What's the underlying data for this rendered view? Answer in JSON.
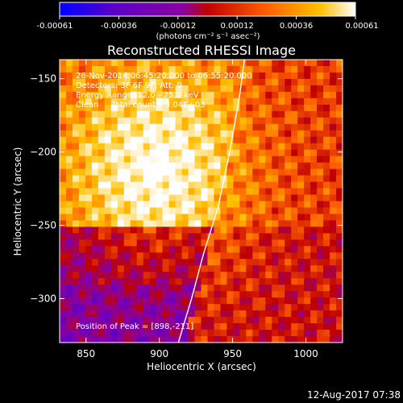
{
  "colorbar": {
    "ticks": [
      "-0.00061",
      "-0.00036",
      "-0.00012",
      "0.00012",
      "0.00036",
      "0.00061"
    ],
    "units_label": "(photons cm⁻² s⁻¹ asec⁻²)",
    "range": [
      -0.00061,
      0.00061
    ],
    "colors": [
      "#0000ff",
      "#5a00c8",
      "#8a00a0",
      "#c00000",
      "#ff6000",
      "#ffc000",
      "#ffffff"
    ]
  },
  "chart_data": {
    "type": "heatmap",
    "title": "Reconstructed RHESSI Image",
    "xlabel": "Heliocentric X (arcsec)",
    "ylabel": "Heliocentric Y (arcsec)",
    "xlim": [
      832,
      1025
    ],
    "ylim": [
      -330,
      -137
    ],
    "xticks": [
      850,
      900,
      950,
      1000
    ],
    "yticks": [
      -150,
      -200,
      -250,
      -300
    ],
    "xtick_labels": [
      "850",
      "900",
      "950",
      "1000"
    ],
    "ytick_labels": [
      "−150",
      "−200",
      "−250",
      "−300"
    ],
    "limb_curve": [
      [
        958,
        -137
      ],
      [
        955,
        -160
      ],
      [
        948,
        -200
      ],
      [
        940,
        -238
      ],
      [
        930,
        -270
      ],
      [
        922,
        -300
      ],
      [
        913,
        -330
      ]
    ],
    "peak": [
      898,
      -211
    ],
    "annotations": [
      "26-Nov-2014 06:45:20.000 to 06:55:20.000",
      "Detectors: 3F 6F 9F, Att: 0",
      "Energy Range: 12.0 - 25.0 keV",
      "Clean     Total counts: 3.04E+03"
    ],
    "peak_label": "Position of Peak = [898,-211]"
  },
  "footer": {
    "date": "12-Aug-2017 07:38"
  }
}
